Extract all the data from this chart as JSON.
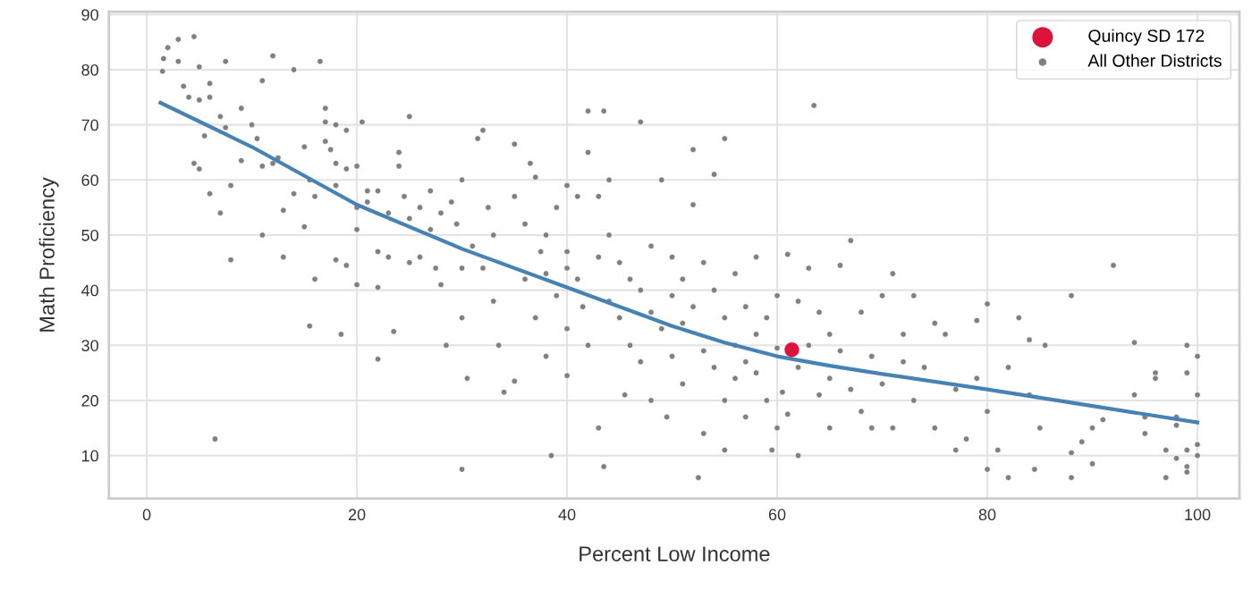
{
  "chart_data": {
    "type": "scatter",
    "xlabel": "Percent Low Income",
    "ylabel": "Math Proficiency",
    "xlim": [
      -3.6,
      104
    ],
    "ylim": [
      2.2,
      90.5
    ],
    "xticks": [
      0,
      20,
      40,
      60,
      80,
      100
    ],
    "yticks": [
      10,
      20,
      30,
      40,
      50,
      60,
      70,
      80,
      90
    ],
    "grid": true,
    "legend": "top right",
    "series": [
      {
        "name": "All Other Districts",
        "marker": "circle",
        "color": "#808080",
        "x": [
          1.5,
          1.6,
          2,
          3,
          3,
          4.5,
          3.5,
          4,
          5,
          5,
          5.5,
          6,
          6,
          7,
          7.5,
          7.5,
          4.5,
          5,
          6,
          7,
          8,
          8,
          6.5,
          9,
          9,
          10,
          10.5,
          11,
          11,
          11,
          12,
          12,
          12.5,
          13,
          13,
          14,
          14,
          15,
          15,
          15.5,
          16,
          16,
          15.5,
          16.5,
          17,
          17,
          17,
          17.5,
          18,
          18,
          18,
          18,
          18.5,
          19,
          19,
          19,
          20,
          20,
          20,
          20,
          20.5,
          21,
          21,
          22,
          22,
          22,
          22,
          23,
          23,
          23.5,
          24,
          24,
          24.5,
          25,
          25,
          25,
          26,
          26,
          27,
          27,
          27.5,
          28,
          28,
          28.5,
          29,
          29.5,
          30,
          30,
          30,
          30.5,
          30,
          31,
          31.5,
          32,
          32,
          32.5,
          33,
          33,
          33.5,
          34,
          35,
          35,
          35,
          36,
          36,
          36.5,
          37,
          37,
          37.5,
          38,
          38,
          38,
          38.5,
          39,
          39,
          40,
          40,
          40,
          40,
          40,
          41,
          41,
          41.5,
          42,
          42,
          42,
          43,
          43,
          43,
          43.5,
          43.5,
          44,
          44,
          44,
          45,
          45,
          45.5,
          46,
          46,
          47,
          47,
          47,
          48,
          48,
          48,
          49,
          49,
          49.5,
          50,
          50,
          50,
          51,
          51,
          51,
          52,
          52,
          52,
          52.5,
          53,
          53,
          53,
          54,
          54,
          54,
          55,
          55,
          55,
          55,
          56,
          56,
          56,
          57,
          57,
          57,
          58,
          58,
          58,
          59,
          59,
          59.5,
          60,
          60,
          60,
          60.5,
          61,
          61,
          62,
          62,
          62,
          63,
          63,
          63.5,
          64,
          64,
          65,
          65,
          65,
          66,
          66,
          67,
          67,
          68,
          68,
          69,
          69,
          70,
          70,
          71,
          71,
          72,
          72,
          73,
          73,
          74,
          75,
          75,
          76,
          77,
          77,
          78,
          79,
          79,
          80,
          80,
          80,
          81,
          82,
          82,
          83,
          84,
          84,
          84.5,
          85,
          85.5,
          88,
          88,
          88,
          89,
          90,
          90,
          91,
          92,
          94,
          94,
          95,
          95,
          96,
          96,
          97,
          97,
          98,
          98,
          98,
          99,
          99,
          99,
          99,
          99,
          100,
          100,
          100,
          100
        ],
        "values": [
          79.7,
          82,
          84,
          81.5,
          85.5,
          86,
          77,
          75,
          74.5,
          80.5,
          68,
          75,
          77.5,
          71.5,
          69.5,
          81.5,
          63,
          62,
          57.5,
          54,
          59,
          45.5,
          13,
          63.5,
          73,
          70,
          67.5,
          62.5,
          78,
          50,
          82.5,
          63,
          64,
          54.5,
          46,
          80,
          57.5,
          66,
          51.5,
          60,
          57,
          42,
          33.5,
          81.5,
          73,
          70.5,
          67,
          65.5,
          70,
          63,
          59,
          45.5,
          32,
          62,
          69,
          44.5,
          62.5,
          55,
          51,
          41,
          70.5,
          58,
          56,
          58,
          47,
          40.5,
          27.5,
          54,
          46,
          32.5,
          62.5,
          65,
          57,
          71.5,
          53,
          45,
          55,
          46,
          58,
          51,
          44,
          54,
          41,
          30,
          56,
          52,
          60,
          44,
          35,
          24,
          7.5,
          48,
          67.5,
          69,
          44,
          55,
          50,
          38,
          30,
          21.5,
          66.5,
          57,
          23.5,
          52,
          42,
          63,
          60.5,
          35,
          47,
          50,
          43,
          28,
          10,
          55,
          39,
          59,
          47,
          44,
          33,
          24.5,
          57,
          42,
          37,
          72.5,
          65,
          30,
          57,
          46,
          15,
          72.5,
          8,
          60,
          50,
          38,
          45,
          35,
          21,
          42,
          30,
          70.5,
          40,
          27,
          48,
          36,
          20,
          60,
          33,
          17,
          46,
          39,
          28,
          42,
          34,
          23,
          65.5,
          55.5,
          37,
          6,
          45,
          29,
          14,
          61,
          40,
          26,
          67.5,
          35,
          20,
          11,
          43,
          30,
          24,
          37,
          27,
          17,
          46,
          32,
          25,
          35,
          20,
          11,
          39,
          29.5,
          15,
          21.5,
          46.5,
          17.5,
          38,
          26,
          10,
          44,
          30,
          73.5,
          36,
          21,
          32,
          24,
          15,
          44.5,
          29,
          49,
          22,
          36,
          18,
          28,
          15,
          39,
          23,
          43,
          15,
          32,
          27,
          39,
          20,
          26,
          34,
          15,
          32,
          22,
          11,
          13,
          34.5,
          24,
          37.5,
          18,
          7.5,
          11,
          26,
          6,
          35,
          31,
          21,
          7.5,
          15,
          30,
          39,
          10.5,
          6,
          12.5,
          15,
          8.5,
          16.5,
          44.5,
          30.5,
          21,
          17,
          14,
          25,
          24,
          11,
          6,
          17,
          15.5,
          9.5,
          30,
          25,
          11,
          8,
          7,
          28,
          21,
          10,
          12
        ]
      },
      {
        "type": "line",
        "marker": "none",
        "color": "#4682b4",
        "x": [
          1.3,
          10,
          20,
          30,
          40,
          50,
          55,
          60,
          65,
          70,
          80,
          90,
          100
        ],
        "values": [
          74,
          66,
          55.5,
          47.5,
          40.5,
          33.5,
          30.5,
          28,
          26.3,
          24.8,
          22,
          19,
          16
        ]
      },
      {
        "name": "Quincy SD 172",
        "marker": "circle",
        "color": "#dc143c",
        "x": [
          61.4
        ],
        "values": [
          29.2
        ]
      }
    ]
  }
}
